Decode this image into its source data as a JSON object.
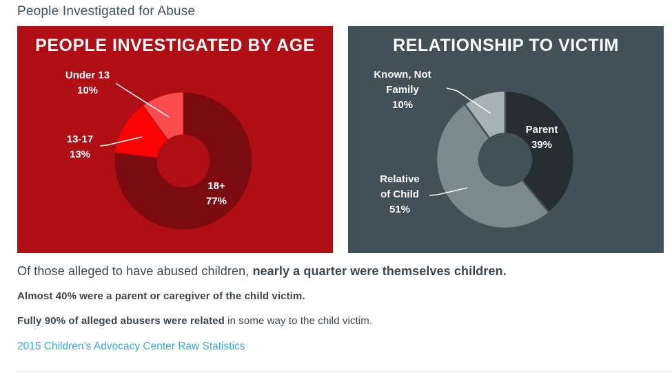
{
  "page": {
    "title": "People Investigated for Abuse"
  },
  "chart_data": [
    {
      "type": "pie",
      "subtype": "donut",
      "title": "PEOPLE INVESTIGATED BY AGE",
      "categories": [
        "18+",
        "13-17",
        "Under 13"
      ],
      "values": [
        77,
        13,
        10
      ],
      "unit": "%",
      "start_angle_deg": 0,
      "direction": "clockwise",
      "legend_position": "none",
      "colors": {
        "background": "#B00E15",
        "slices": [
          "#7C0B10",
          "#FA0305",
          "#FA4B4D"
        ],
        "title": "#FBFBFB",
        "labels": "#FFFFFF"
      },
      "labels": [
        {
          "lines": [
            "18+",
            "77%"
          ]
        },
        {
          "lines": [
            "13-17",
            "13%"
          ]
        },
        {
          "lines": [
            "Under 13",
            "10%"
          ]
        }
      ]
    },
    {
      "type": "pie",
      "subtype": "donut",
      "title": "RELATIONSHIP TO VICTIM",
      "categories": [
        "Parent",
        "Relative of Child",
        "Known, Not Family"
      ],
      "values": [
        39,
        51,
        10
      ],
      "unit": "%",
      "start_angle_deg": 0,
      "direction": "clockwise",
      "legend_position": "none",
      "colors": {
        "background": "#425057",
        "slices": [
          "#272E31",
          "#7A8A8E",
          "#A7B2B5"
        ],
        "title": "#FBFBFB",
        "labels": "#FFFFFF"
      },
      "labels": [
        {
          "lines": [
            "Parent",
            "39%"
          ]
        },
        {
          "lines": [
            "Relative",
            "of Child",
            "51%"
          ]
        },
        {
          "lines": [
            "Known, Not",
            "Family",
            "10%"
          ]
        }
      ]
    }
  ],
  "body_text": {
    "lead_regular": "Of those alleged to have abused children, ",
    "lead_bold": "nearly a quarter were themselves children.",
    "fact1": "Almost 40% were a parent or caregiver of the child victim.",
    "fact2_bold": "Fully 90% of alleged abusers were related",
    "fact2_regular": " in some way to the child victim.",
    "source_link": "2015 Children’s Advocacy Center Raw Statistics",
    "link_color": "#35AADF"
  }
}
